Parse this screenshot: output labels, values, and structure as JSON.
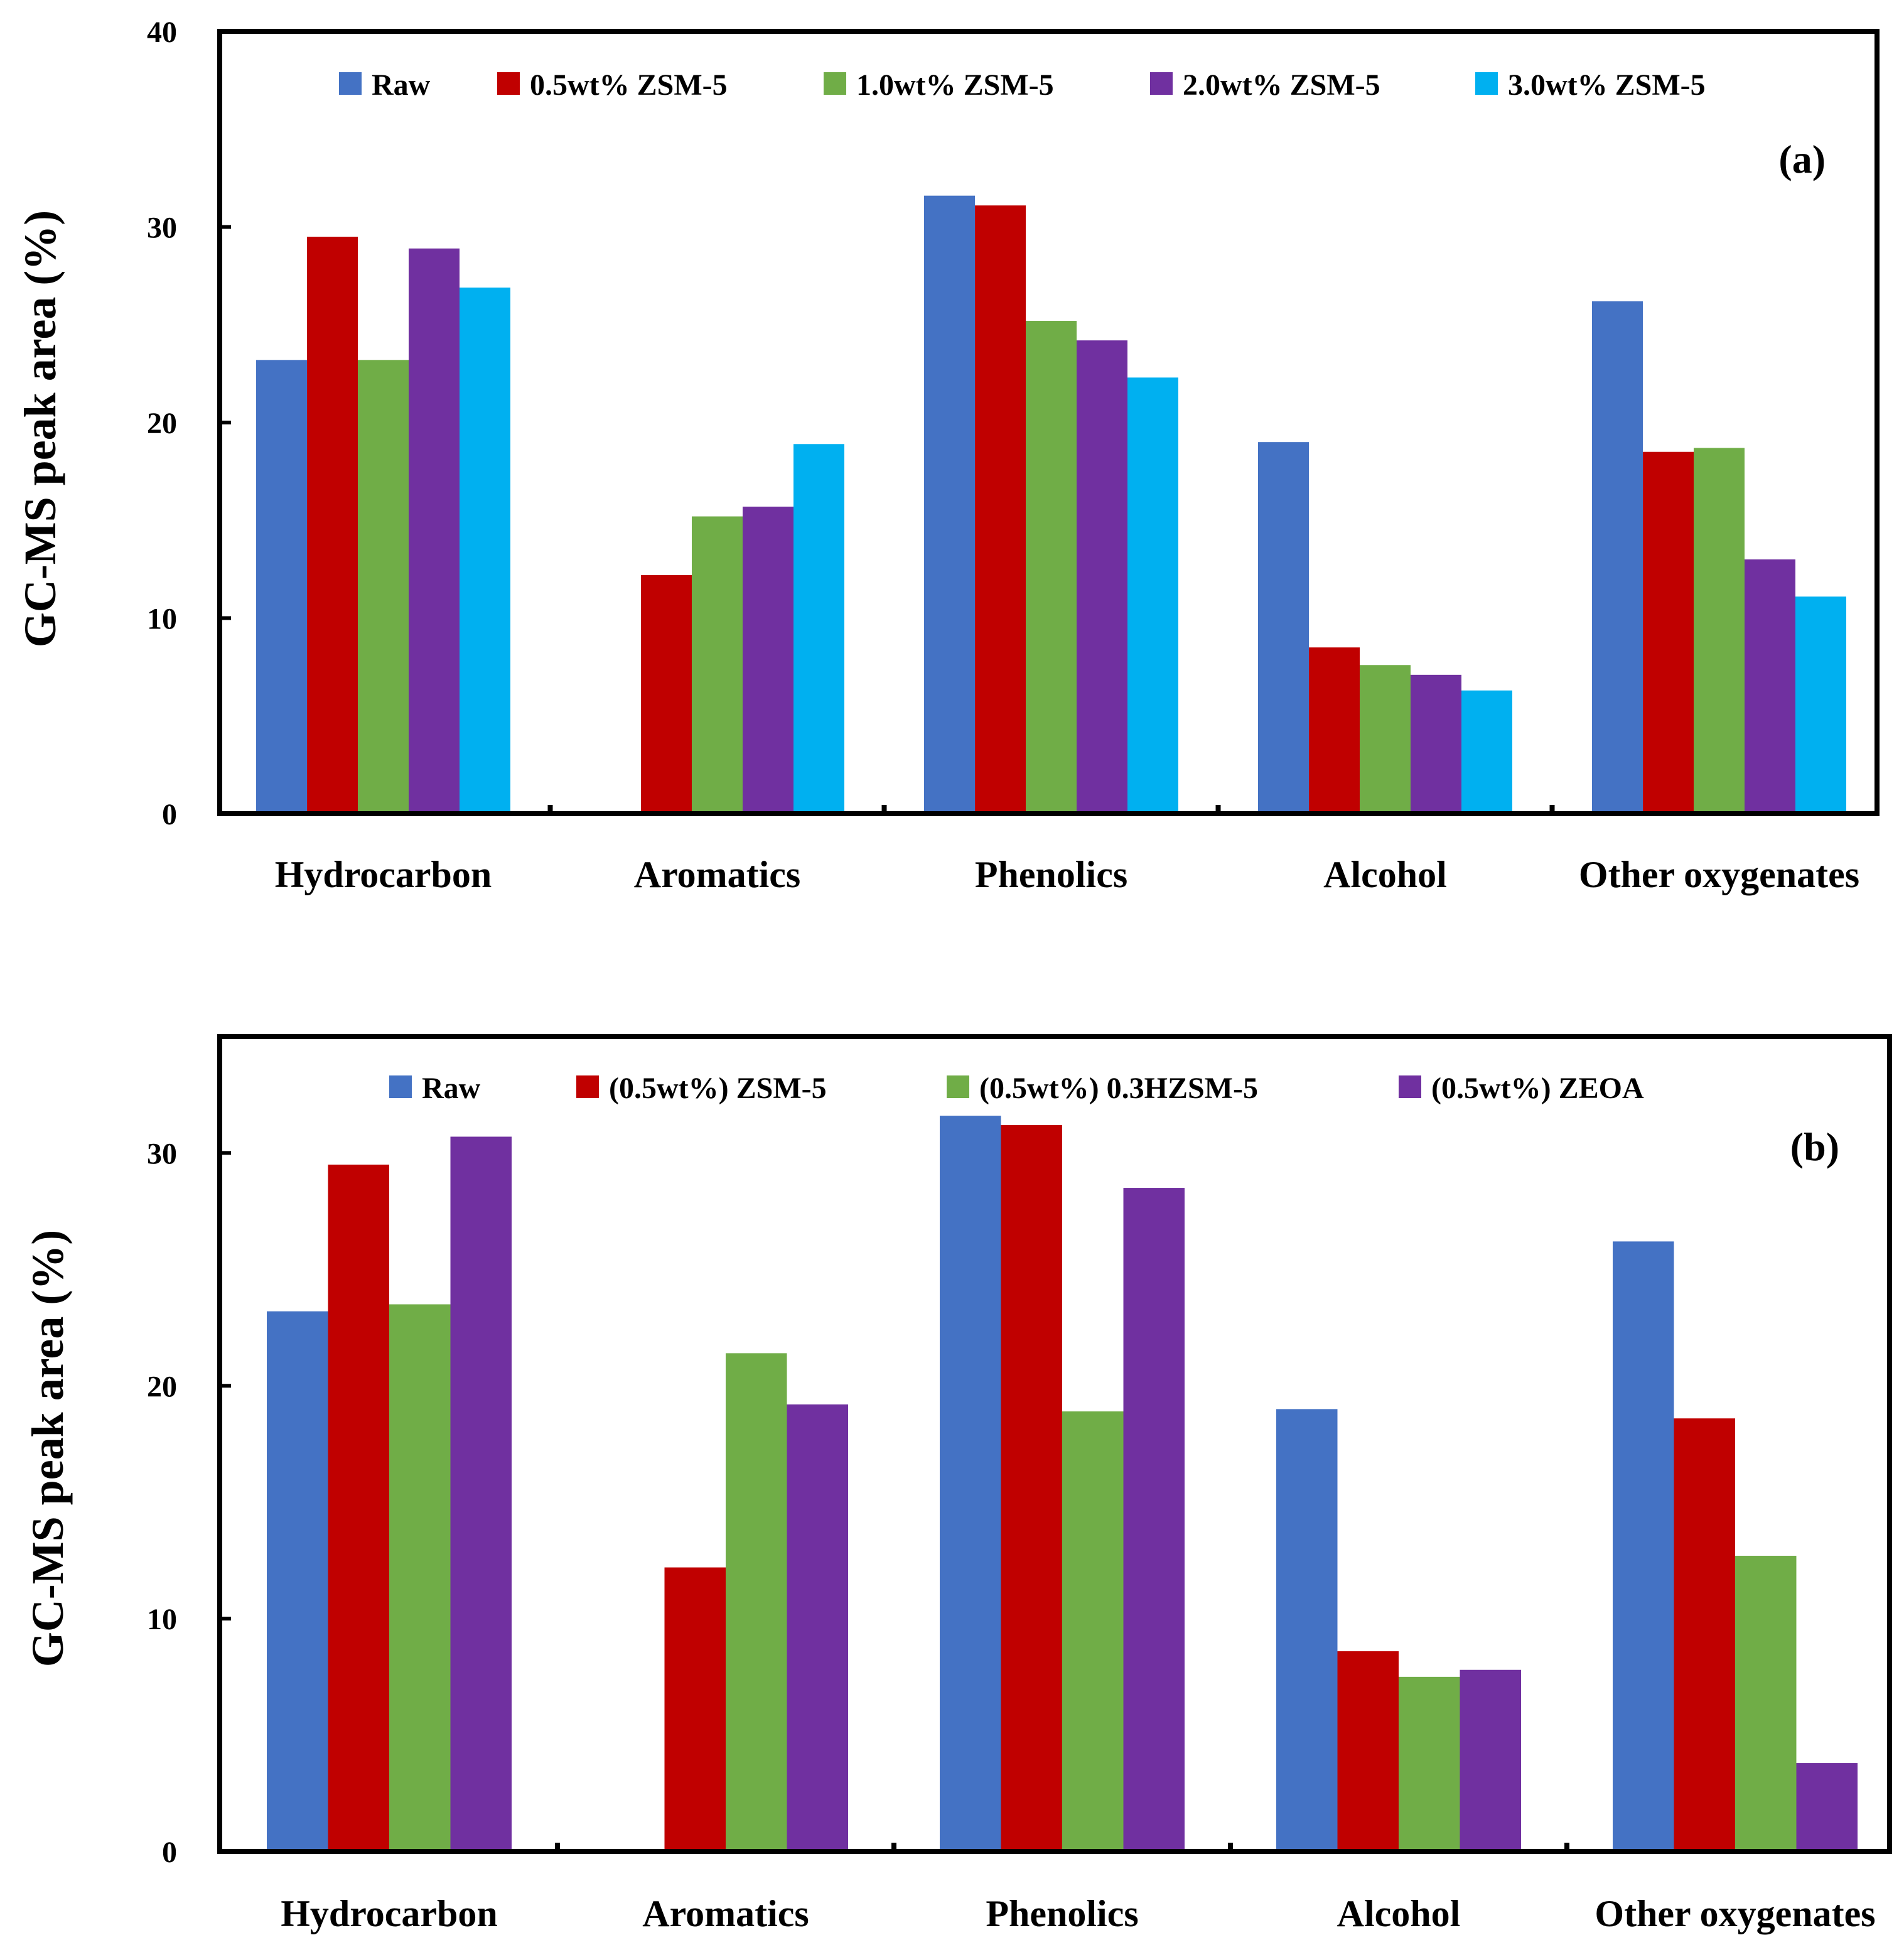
{
  "chart_data": [
    {
      "type": "bar",
      "panel_label": "(a)",
      "ylabel": "GC-MS peak area (%)",
      "ylim": [
        0,
        40
      ],
      "yticks": [
        "0",
        "10",
        "20",
        "30",
        "40"
      ],
      "categories": [
        "Hydrocarbon",
        "Aromatics",
        "Phenolics",
        "Alcohol",
        "Other oxygenates"
      ],
      "legend_position": "top",
      "series": [
        {
          "name": "Raw",
          "color": "#4472C4",
          "values": [
            23.2,
            0,
            31.6,
            19.0,
            26.2
          ]
        },
        {
          "name": "0.5wt% ZSM-5",
          "color": "#C00000",
          "values": [
            29.5,
            12.2,
            31.1,
            8.5,
            18.5
          ]
        },
        {
          "name": "1.0wt% ZSM-5",
          "color": "#70AD47",
          "values": [
            23.2,
            15.2,
            25.2,
            7.6,
            18.7
          ]
        },
        {
          "name": "2.0wt% ZSM-5",
          "color": "#7030A0",
          "values": [
            28.9,
            15.7,
            24.2,
            7.1,
            13.0
          ]
        },
        {
          "name": "3.0wt% ZSM-5",
          "color": "#00B0F0",
          "values": [
            26.9,
            18.9,
            22.3,
            6.3,
            11.1
          ]
        }
      ]
    },
    {
      "type": "bar",
      "panel_label": "(b)",
      "ylabel": "GC-MS peak area (%)",
      "ylim": [
        0,
        35
      ],
      "yticks": [
        "0",
        "10",
        "20",
        "30"
      ],
      "categories": [
        "Hydrocarbon",
        "Aromatics",
        "Phenolics",
        "Alcohol",
        "Other oxygenates"
      ],
      "legend_position": "top",
      "series": [
        {
          "name": "Raw",
          "color": "#4472C4",
          "values": [
            23.2,
            0,
            31.6,
            19.0,
            26.2
          ]
        },
        {
          "name": "(0.5wt%) ZSM-5",
          "color": "#C00000",
          "values": [
            29.5,
            12.2,
            31.2,
            8.6,
            18.6
          ]
        },
        {
          "name": "(0.5wt%) 0.3HZSM-5",
          "color": "#70AD47",
          "values": [
            23.5,
            21.4,
            18.9,
            7.5,
            12.7
          ]
        },
        {
          "name": "(0.5wt%) ZEOA",
          "color": "#7030A0",
          "values": [
            30.7,
            19.2,
            28.5,
            7.8,
            3.8
          ]
        }
      ]
    }
  ]
}
